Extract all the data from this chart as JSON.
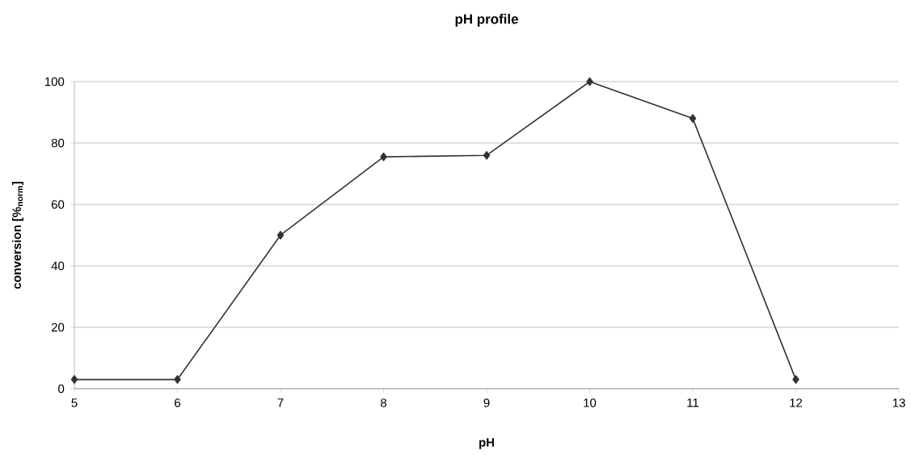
{
  "chart_data": {
    "type": "line",
    "title": "pH profile",
    "xlabel": "pH",
    "ylabel": "conversion [%$_{norm}$]",
    "x": [
      5,
      6,
      7,
      8,
      9,
      10,
      11,
      12
    ],
    "series": [
      {
        "color": "#333333",
        "values": [
          3,
          3,
          50,
          75.5,
          76,
          100,
          88,
          3
        ]
      }
    ],
    "xlim": [
      5,
      13
    ],
    "xticks": [
      5,
      6,
      7,
      8,
      9,
      10,
      11,
      12,
      13
    ],
    "ylim": [
      0,
      100
    ],
    "yticks": [
      0,
      20,
      40,
      60,
      80,
      100
    ],
    "grid": "y",
    "marker": "diamond",
    "line_style": "solid"
  }
}
